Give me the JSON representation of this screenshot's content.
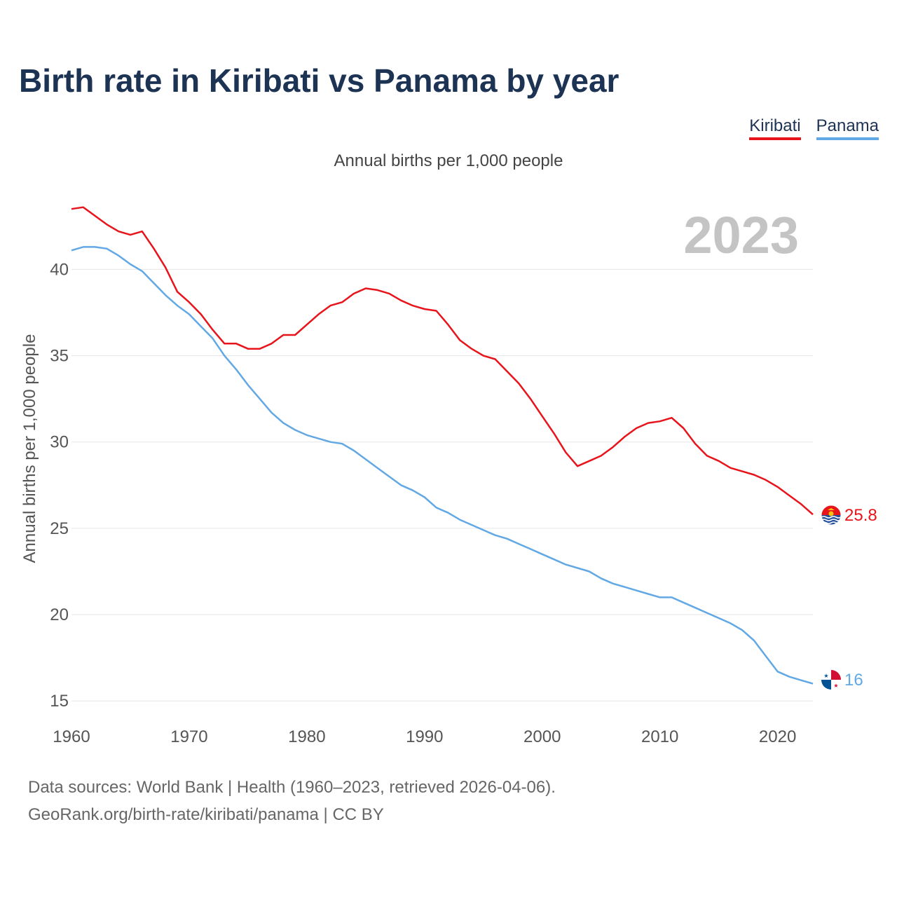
{
  "title": "Birth rate in Kiribati vs Panama by year",
  "subtitle": "Annual births per 1,000 people",
  "legend": [
    {
      "name": "Kiribati",
      "color": "#e8141c"
    },
    {
      "name": "Panama",
      "color": "#62a8e5"
    }
  ],
  "year_label": "2023",
  "footer": {
    "line1": "Data sources: World Bank | Health (1960–2023, retrieved 2026-04-06).",
    "line2": "GeoRank.org/birth-rate/kiribati/panama | CC BY"
  },
  "chart_data": {
    "type": "line",
    "title": "Birth rate in Kiribati vs Panama by year",
    "xlabel": "",
    "ylabel": "Annual births per 1,000 people",
    "xlim": [
      1960,
      2023
    ],
    "ylim": [
      14.4,
      44.4
    ],
    "x_ticks": [
      1960,
      1970,
      1980,
      1990,
      2000,
      2010,
      2020
    ],
    "y_ticks": [
      15,
      20,
      25,
      30,
      35,
      40
    ],
    "grid": true,
    "x": [
      1960,
      1961,
      1962,
      1963,
      1964,
      1965,
      1966,
      1967,
      1968,
      1969,
      1970,
      1971,
      1972,
      1973,
      1974,
      1975,
      1976,
      1977,
      1978,
      1979,
      1980,
      1981,
      1982,
      1983,
      1984,
      1985,
      1986,
      1987,
      1988,
      1989,
      1990,
      1991,
      1992,
      1993,
      1994,
      1995,
      1996,
      1997,
      1998,
      1999,
      2000,
      2001,
      2002,
      2003,
      2004,
      2005,
      2006,
      2007,
      2008,
      2009,
      2010,
      2011,
      2012,
      2013,
      2014,
      2015,
      2016,
      2017,
      2018,
      2019,
      2020,
      2021,
      2022,
      2023
    ],
    "series": [
      {
        "name": "Kiribati",
        "color": "#e8141c",
        "end_label": "25.8",
        "values": [
          43.5,
          43.6,
          43.1,
          42.6,
          42.2,
          42.0,
          42.2,
          41.2,
          40.1,
          38.7,
          38.1,
          37.4,
          36.5,
          35.7,
          35.7,
          35.4,
          35.4,
          35.7,
          36.2,
          36.2,
          36.8,
          37.4,
          37.9,
          38.1,
          38.6,
          38.9,
          38.8,
          38.6,
          38.2,
          37.9,
          37.7,
          37.6,
          36.8,
          35.9,
          35.4,
          35.0,
          34.8,
          34.1,
          33.4,
          32.5,
          31.5,
          30.5,
          29.4,
          28.6,
          28.9,
          29.2,
          29.7,
          30.3,
          30.8,
          31.1,
          31.2,
          31.4,
          30.8,
          29.9,
          29.2,
          28.9,
          28.5,
          28.3,
          28.1,
          27.8,
          27.4,
          26.9,
          26.4,
          25.8
        ]
      },
      {
        "name": "Panama",
        "color": "#62a8e5",
        "end_label": "16",
        "values": [
          41.1,
          41.3,
          41.3,
          41.2,
          40.8,
          40.3,
          39.9,
          39.2,
          38.5,
          37.9,
          37.4,
          36.7,
          36.0,
          35.0,
          34.2,
          33.3,
          32.5,
          31.7,
          31.1,
          30.7,
          30.4,
          30.2,
          30.0,
          29.9,
          29.5,
          29.0,
          28.5,
          28.0,
          27.5,
          27.2,
          26.8,
          26.2,
          25.9,
          25.5,
          25.2,
          24.9,
          24.6,
          24.4,
          24.1,
          23.8,
          23.5,
          23.2,
          22.9,
          22.7,
          22.5,
          22.1,
          21.8,
          21.6,
          21.4,
          21.2,
          21.0,
          21.0,
          20.7,
          20.4,
          20.1,
          19.8,
          19.5,
          19.1,
          18.5,
          17.6,
          16.7,
          16.4,
          16.2,
          16.0
        ]
      }
    ]
  }
}
